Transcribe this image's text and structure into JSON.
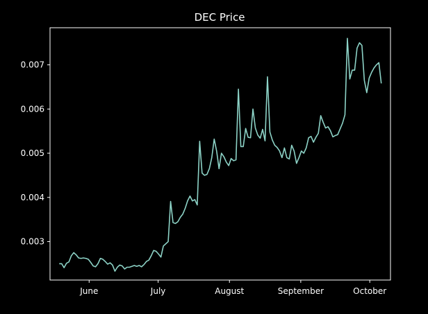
{
  "chart_data": {
    "type": "line",
    "title": "DEC Price",
    "xlabel": "",
    "ylabel": "",
    "x_date_range": [
      "2021-05-19",
      "2021-10-06"
    ],
    "xlim": [
      "2021-05-15",
      "2021-10-10"
    ],
    "ylim": [
      0.00213,
      0.00784
    ],
    "grid": false,
    "line_color": "#8dd3c7",
    "background": "#000000",
    "x_ticks": [
      {
        "date": "2021-06-01",
        "label": "June"
      },
      {
        "date": "2021-07-01",
        "label": "July"
      },
      {
        "date": "2021-08-01",
        "label": "August"
      },
      {
        "date": "2021-09-01",
        "label": "September"
      },
      {
        "date": "2021-10-01",
        "label": "October"
      }
    ],
    "y_ticks": [
      {
        "value": 0.003,
        "label": "0.003"
      },
      {
        "value": 0.004,
        "label": "0.004"
      },
      {
        "value": 0.005,
        "label": "0.005"
      },
      {
        "value": 0.006,
        "label": "0.006"
      },
      {
        "value": 0.007,
        "label": "0.007"
      }
    ],
    "series": [
      {
        "values": [
          0.0025,
          0.0025,
          0.00241,
          0.00251,
          0.00254,
          0.00268,
          0.00275,
          0.0027,
          0.00263,
          0.00262,
          0.00263,
          0.00262,
          0.0026,
          0.00253,
          0.00245,
          0.00243,
          0.0025,
          0.00262,
          0.0026,
          0.00255,
          0.00249,
          0.00252,
          0.00247,
          0.00233,
          0.00242,
          0.00247,
          0.00245,
          0.00238,
          0.00242,
          0.00242,
          0.00244,
          0.00246,
          0.00244,
          0.00246,
          0.00243,
          0.00248,
          0.00255,
          0.00258,
          0.00268,
          0.0028,
          0.00278,
          0.00272,
          0.00265,
          0.0029,
          0.00295,
          0.003,
          0.00391,
          0.00343,
          0.00341,
          0.00345,
          0.00355,
          0.00362,
          0.00375,
          0.00392,
          0.00403,
          0.00392,
          0.00395,
          0.00383,
          0.00527,
          0.00455,
          0.0045,
          0.00452,
          0.00465,
          0.0049,
          0.00532,
          0.00505,
          0.00465,
          0.005,
          0.00492,
          0.0048,
          0.00472,
          0.00488,
          0.00483,
          0.00485,
          0.00645,
          0.00515,
          0.00515,
          0.00556,
          0.00536,
          0.00535,
          0.006,
          0.00557,
          0.00541,
          0.00534,
          0.00554,
          0.00528,
          0.00673,
          0.00548,
          0.0053,
          0.00518,
          0.00513,
          0.00505,
          0.0049,
          0.00512,
          0.0049,
          0.00487,
          0.00518,
          0.00505,
          0.00477,
          0.0049,
          0.00505,
          0.005,
          0.00512,
          0.00535,
          0.00538,
          0.00525,
          0.00536,
          0.00545,
          0.00585,
          0.0057,
          0.00557,
          0.0056,
          0.00551,
          0.00537,
          0.0054,
          0.00542,
          0.00555,
          0.00568,
          0.00587,
          0.0076,
          0.00668,
          0.00688,
          0.00688,
          0.00738,
          0.0075,
          0.00744,
          0.00665,
          0.00637,
          0.0067,
          0.00683,
          0.00693,
          0.007,
          0.00705,
          0.00658
        ]
      }
    ]
  }
}
